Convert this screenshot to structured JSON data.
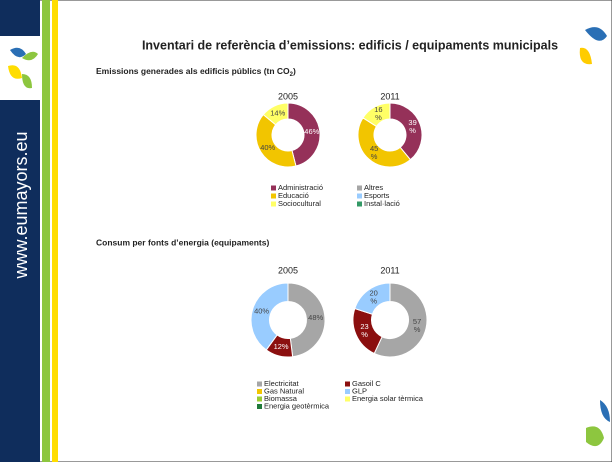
{
  "sidebar_text": "www.eumayors.eu",
  "title": "Inventari de referència d’emissions: edificis / equipaments municipals",
  "section1": {
    "text": "Emissions generades als edificis públics (tn CO",
    "sub": "2",
    "end": ")"
  },
  "section2": {
    "text": "Consum per fonts d’energia (equipaments)"
  },
  "legend1": [
    {
      "name": "Administració",
      "color": "#953159"
    },
    {
      "name": "Altres",
      "color": "#a6a6a6"
    },
    {
      "name": "Educació",
      "color": "#f2c500"
    },
    {
      "name": "Esports",
      "color": "#99ccff"
    },
    {
      "name": "Sociocultural",
      "color": "#ffff66"
    },
    {
      "name": "Instal·lació",
      "color": "#339966"
    }
  ],
  "legend2": [
    {
      "name": "Electricitat",
      "color": "#a6a6a6"
    },
    {
      "name": "Gasoil C",
      "color": "#8b0f0f"
    },
    {
      "name": "Gas Natural",
      "color": "#f2c500"
    },
    {
      "name": "GLP",
      "color": "#99ccff"
    },
    {
      "name": "Biomassa",
      "color": "#99cc33"
    },
    {
      "name": "Energia solar tèrmica",
      "color": "#ffff66"
    },
    {
      "name": "Energia geotèrmica",
      "color": "#1f7a3a"
    }
  ],
  "chart_data": [
    {
      "type": "pie",
      "title": "2005",
      "categories": [
        "Administració",
        "Educació",
        "Sociocultural"
      ],
      "values": [
        46,
        40,
        14
      ],
      "value_labels": [
        "46%",
        "40%",
        "14%"
      ],
      "colors": [
        "#953159",
        "#f2c500",
        "#ffff66"
      ]
    },
    {
      "type": "pie",
      "title": "2011",
      "categories": [
        "Administració",
        "Educació",
        "Sociocultural"
      ],
      "values": [
        39,
        45,
        16
      ],
      "value_labels": [
        "39 %",
        "45 %",
        "16 %"
      ],
      "colors": [
        "#953159",
        "#f2c500",
        "#ffff66"
      ]
    },
    {
      "type": "pie",
      "title": "2005",
      "categories": [
        "Electricitat",
        "Gasoil C",
        "GLP"
      ],
      "values": [
        48,
        12,
        40
      ],
      "value_labels": [
        "48%",
        "12%",
        "40%"
      ],
      "colors": [
        "#a6a6a6",
        "#8b0f0f",
        "#99ccff"
      ]
    },
    {
      "type": "pie",
      "title": "2011",
      "categories": [
        "Electricitat",
        "Gasoil C",
        "GLP"
      ],
      "values": [
        57,
        23,
        20
      ],
      "value_labels": [
        "57 %",
        "23 %",
        "20 %"
      ],
      "colors": [
        "#a6a6a6",
        "#8b0f0f",
        "#99ccff"
      ]
    }
  ]
}
